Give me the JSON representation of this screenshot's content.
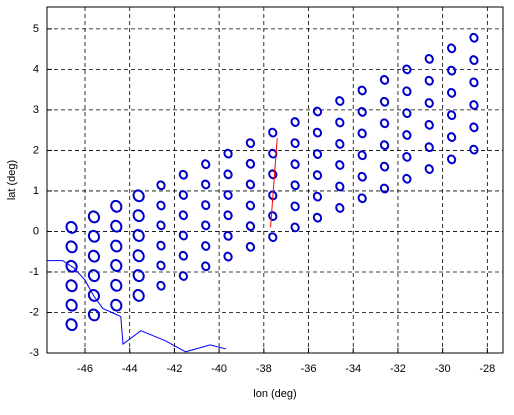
{
  "chart_data": {
    "type": "scatter",
    "xlabel": "lon (deg)",
    "ylabel": "lat (deg)",
    "xlim": [
      -47.7,
      -27.3
    ],
    "ylim": [
      -3,
      5.54
    ],
    "xticks": [
      -46,
      -44,
      -42,
      -40,
      -38,
      -36,
      -34,
      -32,
      -30,
      -28
    ],
    "yticks": [
      -3,
      -2,
      -1,
      0,
      1,
      2,
      3,
      4,
      5
    ],
    "grid": true,
    "series": [
      {
        "type": "scatter",
        "color": "#0000cc",
        "x": [
          -46.6,
          -46.6,
          -46.6,
          -46.6,
          -46.6,
          -46.6,
          -45.6,
          -45.6,
          -45.6,
          -45.6,
          -45.6,
          -45.6,
          -44.6,
          -44.6,
          -44.6,
          -44.6,
          -44.6,
          -44.6,
          -43.6,
          -43.6,
          -43.6,
          -43.6,
          -43.6,
          -43.6,
          -42.6,
          -42.6,
          -42.6,
          -42.6,
          -42.6,
          -42.6,
          -41.6,
          -41.6,
          -41.6,
          -41.6,
          -41.6,
          -41.6,
          -40.6,
          -40.6,
          -40.6,
          -40.6,
          -40.6,
          -40.6,
          -39.6,
          -39.6,
          -39.6,
          -39.6,
          -39.6,
          -39.6,
          -38.6,
          -38.6,
          -38.6,
          -38.6,
          -38.6,
          -38.6,
          -37.6,
          -37.6,
          -37.6,
          -37.6,
          -37.6,
          -37.6,
          -36.6,
          -36.6,
          -36.6,
          -36.6,
          -36.6,
          -36.6,
          -35.6,
          -35.6,
          -35.6,
          -35.6,
          -35.6,
          -35.6,
          -34.6,
          -34.6,
          -34.6,
          -34.6,
          -34.6,
          -34.6,
          -33.6,
          -33.6,
          -33.6,
          -33.6,
          -33.6,
          -33.6,
          -32.6,
          -32.6,
          -32.6,
          -32.6,
          -32.6,
          -32.6,
          -31.6,
          -31.6,
          -31.6,
          -31.6,
          -31.6,
          -31.6,
          -30.6,
          -30.6,
          -30.6,
          -30.6,
          -30.6,
          -30.6,
          -29.6,
          -29.6,
          -29.6,
          -29.6,
          -29.6,
          -29.6,
          -28.6,
          -28.6,
          -28.6,
          -28.6,
          -28.6,
          -28.6
        ],
        "y": [
          -2.3,
          -1.82,
          -1.34,
          -0.86,
          -0.38,
          0.1,
          -2.06,
          -1.58,
          -1.09,
          -0.61,
          -0.12,
          0.36,
          -1.82,
          -1.33,
          -0.84,
          -0.36,
          0.13,
          0.62,
          -1.58,
          -1.09,
          -0.6,
          -0.1,
          0.39,
          0.88,
          -1.34,
          -0.84,
          -0.35,
          0.15,
          0.64,
          1.14,
          -1.1,
          -0.6,
          -0.1,
          0.4,
          0.9,
          1.4,
          -0.86,
          -0.36,
          0.15,
          0.65,
          1.16,
          1.66,
          -0.62,
          -0.11,
          0.4,
          0.9,
          1.41,
          1.92,
          -0.38,
          0.13,
          0.64,
          1.16,
          1.67,
          2.18,
          -0.14,
          0.38,
          0.89,
          1.41,
          1.92,
          2.44,
          0.1,
          0.62,
          1.14,
          1.66,
          2.18,
          2.7,
          0.34,
          0.86,
          1.39,
          1.91,
          2.44,
          2.96,
          0.58,
          1.11,
          1.64,
          2.16,
          2.69,
          3.22,
          0.82,
          1.35,
          1.88,
          2.42,
          2.95,
          3.48,
          1.06,
          1.6,
          2.13,
          2.67,
          3.2,
          3.74,
          1.3,
          1.84,
          2.38,
          2.92,
          3.46,
          4.0,
          1.54,
          2.08,
          2.63,
          3.17,
          3.72,
          4.26,
          1.78,
          2.33,
          2.87,
          3.42,
          3.97,
          4.52,
          2.02,
          2.57,
          3.12,
          3.68,
          4.23,
          4.78
        ]
      },
      {
        "type": "line",
        "color": "#0000ff",
        "x": [
          -47.7,
          -47.0,
          -46.5,
          -46.0,
          -45.6,
          -45.2,
          -44.8,
          -44.4,
          -44.3,
          -43.5,
          -42.4,
          -41.5,
          -40.4,
          -39.7
        ],
        "y": [
          -0.72,
          -0.72,
          -0.9,
          -1.2,
          -1.6,
          -1.9,
          -2.0,
          -2.1,
          -2.78,
          -2.45,
          -2.7,
          -2.97,
          -2.8,
          -2.9
        ]
      },
      {
        "type": "line",
        "color": "#ff0000",
        "x": [
          -37.7,
          -37.4
        ],
        "y": [
          0.1,
          2.3
        ]
      }
    ]
  }
}
